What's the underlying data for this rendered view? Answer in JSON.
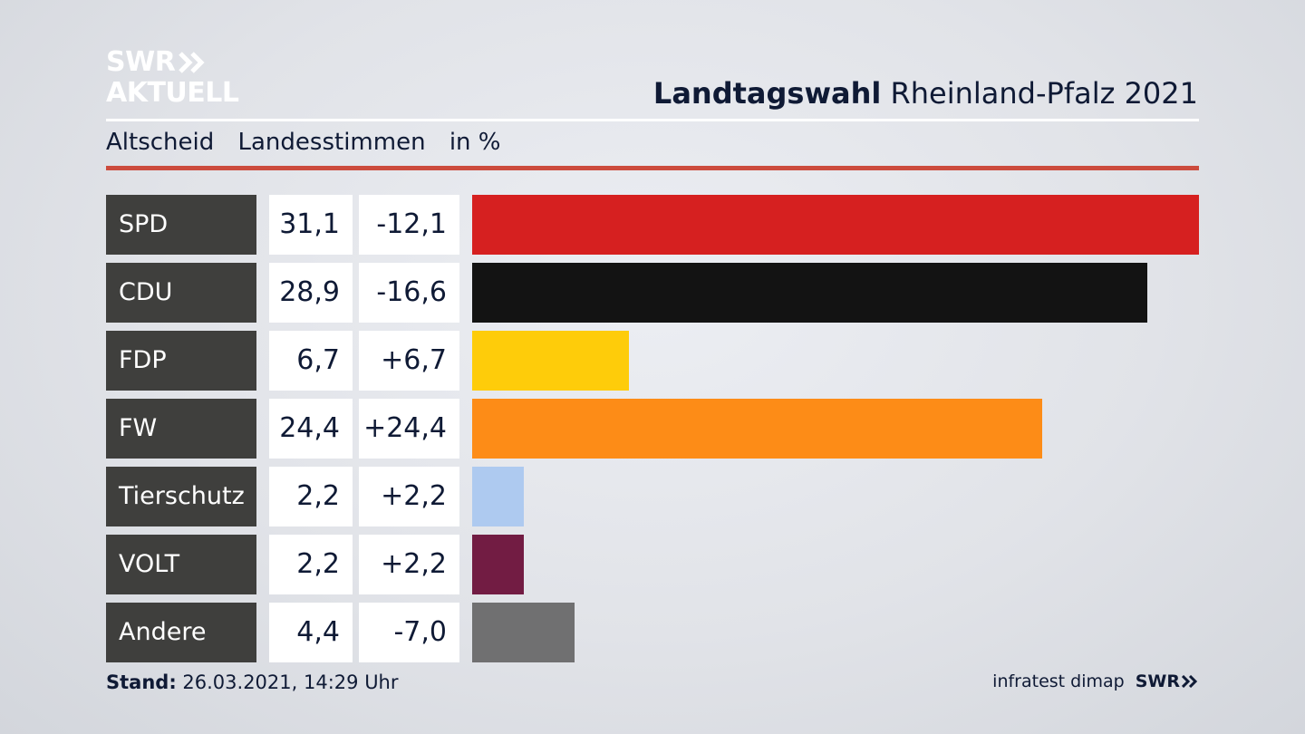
{
  "brand": {
    "line1": "SWR",
    "line2": "AKTUELL"
  },
  "header": {
    "title_bold": "Landtagswahl",
    "title_rest": "Rheinland-Pfalz 2021"
  },
  "subheader": {
    "label1": "Altscheid",
    "label2": "Landesstimmen",
    "label3": "in %"
  },
  "colors": {
    "accent_rule": "#cc4b3d",
    "text": "#0f1a35"
  },
  "chart_data": {
    "type": "bar",
    "categories": [
      "SPD",
      "CDU",
      "FDP",
      "FW",
      "Tierschutz",
      "VOLT",
      "Andere"
    ],
    "values": [
      31.1,
      28.9,
      6.7,
      24.4,
      2.2,
      2.2,
      4.4
    ],
    "value_labels": [
      "31,1",
      "28,9",
      "6,7",
      "24,4",
      "2,2",
      "2,2",
      "4,4"
    ],
    "diff_labels": [
      "-12,1",
      "-16,6",
      "+6,7",
      "+24,4",
      "+2,2",
      "+2,2",
      "-7,0"
    ],
    "bar_colors": [
      "#d62020",
      "#131313",
      "#fecc0a",
      "#fd8c17",
      "#aecaf0",
      "#721c43",
      "#707071"
    ],
    "xlim": [
      0,
      31.1
    ]
  },
  "footer": {
    "stand_label": "Stand:",
    "stand_value": "26.03.2021, 14:29 Uhr",
    "source": "infratest dimap",
    "source_brand": "SWR"
  }
}
